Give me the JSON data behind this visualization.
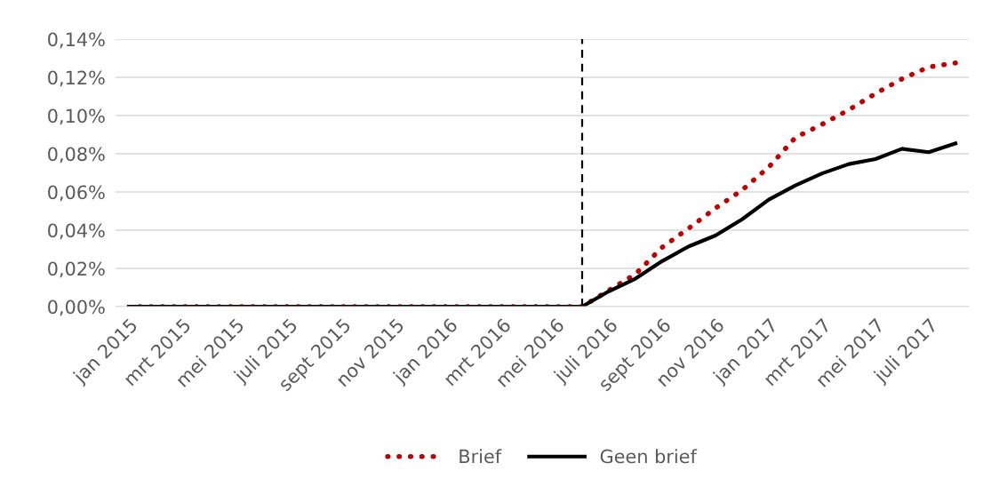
{
  "chart_data": {
    "type": "line",
    "x": [
      "2015-01",
      "2015-02",
      "2015-03",
      "2015-04",
      "2015-05",
      "2015-06",
      "2015-07",
      "2015-08",
      "2015-09",
      "2015-10",
      "2015-11",
      "2015-12",
      "2016-01",
      "2016-02",
      "2016-03",
      "2016-04",
      "2016-05",
      "2016-06",
      "2016-07",
      "2016-08",
      "2016-09",
      "2016-10",
      "2016-11",
      "2016-12",
      "2017-01",
      "2017-02",
      "2017-03",
      "2017-04",
      "2017-05",
      "2017-06",
      "2017-07",
      "2017-08"
    ],
    "series": [
      {
        "name": "Brief",
        "color": "#c00000",
        "line_style": "dotted",
        "values": [
          0,
          0,
          0,
          0,
          0,
          0,
          0,
          0,
          0,
          0,
          0,
          0,
          0,
          0,
          0,
          0,
          0,
          0,
          0.0085,
          0.017,
          0.031,
          0.041,
          0.0515,
          0.061,
          0.073,
          0.0885,
          0.0954,
          0.103,
          0.1115,
          0.1192,
          0.1254,
          0.1275
        ]
      },
      {
        "name": "Geen brief",
        "color": "#000000",
        "line_style": "solid",
        "values": [
          0,
          0,
          0,
          0,
          0,
          0,
          0,
          0,
          0,
          0,
          0,
          0,
          0,
          0,
          0,
          0,
          0,
          0,
          0.008,
          0.0146,
          0.0238,
          0.0315,
          0.0372,
          0.0457,
          0.056,
          0.0634,
          0.0697,
          0.0746,
          0.0772,
          0.0826,
          0.0808,
          0.0854
        ]
      }
    ],
    "xlim": [
      "2014-12-16",
      "2017-08-16"
    ],
    "xticks": [
      {
        "value": "2015-01",
        "label": "jan 2015"
      },
      {
        "value": "2015-03",
        "label": "mrt 2015"
      },
      {
        "value": "2015-05",
        "label": "mei 2015"
      },
      {
        "value": "2015-07",
        "label": "juli 2015"
      },
      {
        "value": "2015-09",
        "label": "sept 2015"
      },
      {
        "value": "2015-11",
        "label": "nov 2015"
      },
      {
        "value": "2016-01",
        "label": "jan 2016"
      },
      {
        "value": "2016-03",
        "label": "mrt 2016"
      },
      {
        "value": "2016-05",
        "label": "mei 2016"
      },
      {
        "value": "2016-07",
        "label": "juli 2016"
      },
      {
        "value": "2016-09",
        "label": "sept 2016"
      },
      {
        "value": "2016-11",
        "label": "nov 2016"
      },
      {
        "value": "2017-01",
        "label": "jan 2017"
      },
      {
        "value": "2017-03",
        "label": "mrt 2017"
      },
      {
        "value": "2017-05",
        "label": "mei 2017"
      },
      {
        "value": "2017-07",
        "label": "juli 2017"
      }
    ],
    "ylim": [
      0,
      0.14
    ],
    "yticks": [
      {
        "value": 0,
        "label": "0,00%"
      },
      {
        "value": 0.02,
        "label": "0,02%"
      },
      {
        "value": 0.04,
        "label": "0,04%"
      },
      {
        "value": 0.06,
        "label": "0,06%"
      },
      {
        "value": 0.08,
        "label": "0,08%"
      },
      {
        "value": 0.1,
        "label": "0,10%"
      },
      {
        "value": 0.12,
        "label": "0,12%"
      },
      {
        "value": 0.14,
        "label": "0,14%"
      }
    ],
    "ref_lines": [
      {
        "axis": "x",
        "value": "2016-06",
        "color": "#000000",
        "line_style": "dashed"
      }
    ],
    "grid": "y",
    "legend": "bottom",
    "marker": "none"
  }
}
